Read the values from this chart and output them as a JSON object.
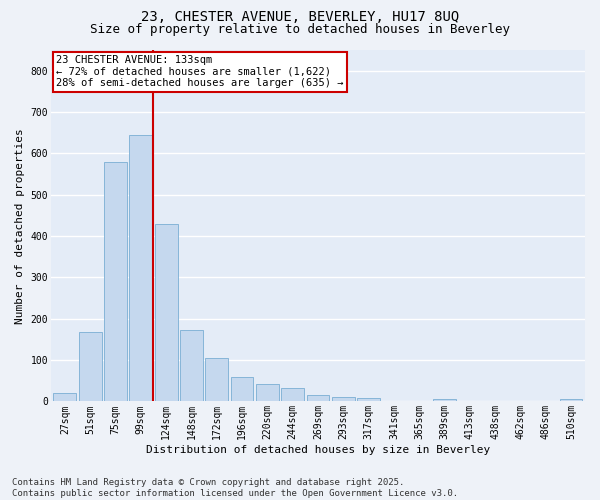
{
  "title_line1": "23, CHESTER AVENUE, BEVERLEY, HU17 8UQ",
  "title_line2": "Size of property relative to detached houses in Beverley",
  "xlabel": "Distribution of detached houses by size in Beverley",
  "ylabel": "Number of detached properties",
  "categories": [
    "27sqm",
    "51sqm",
    "75sqm",
    "99sqm",
    "124sqm",
    "148sqm",
    "172sqm",
    "196sqm",
    "220sqm",
    "244sqm",
    "269sqm",
    "293sqm",
    "317sqm",
    "341sqm",
    "365sqm",
    "389sqm",
    "413sqm",
    "438sqm",
    "462sqm",
    "486sqm",
    "510sqm"
  ],
  "values": [
    20,
    168,
    580,
    645,
    430,
    173,
    105,
    58,
    42,
    32,
    16,
    11,
    9,
    0,
    0,
    7,
    0,
    0,
    0,
    0,
    6
  ],
  "bar_color": "#c5d8ee",
  "bar_edge_color": "#7aaed4",
  "vline_x": 3.5,
  "vline_color": "#cc0000",
  "annotation_text": "23 CHESTER AVENUE: 133sqm\n← 72% of detached houses are smaller (1,622)\n28% of semi-detached houses are larger (635) →",
  "annotation_box_color": "#ffffff",
  "annotation_edge_color": "#cc0000",
  "ylim": [
    0,
    850
  ],
  "yticks": [
    0,
    100,
    200,
    300,
    400,
    500,
    600,
    700,
    800
  ],
  "footnote": "Contains HM Land Registry data © Crown copyright and database right 2025.\nContains public sector information licensed under the Open Government Licence v3.0.",
  "background_color": "#eef2f8",
  "plot_bg_color": "#e4ecf7",
  "grid_color": "#ffffff",
  "title_fontsize": 10,
  "subtitle_fontsize": 9,
  "axis_label_fontsize": 8,
  "tick_fontsize": 7,
  "footnote_fontsize": 6.5,
  "annotation_fontsize": 7.5
}
